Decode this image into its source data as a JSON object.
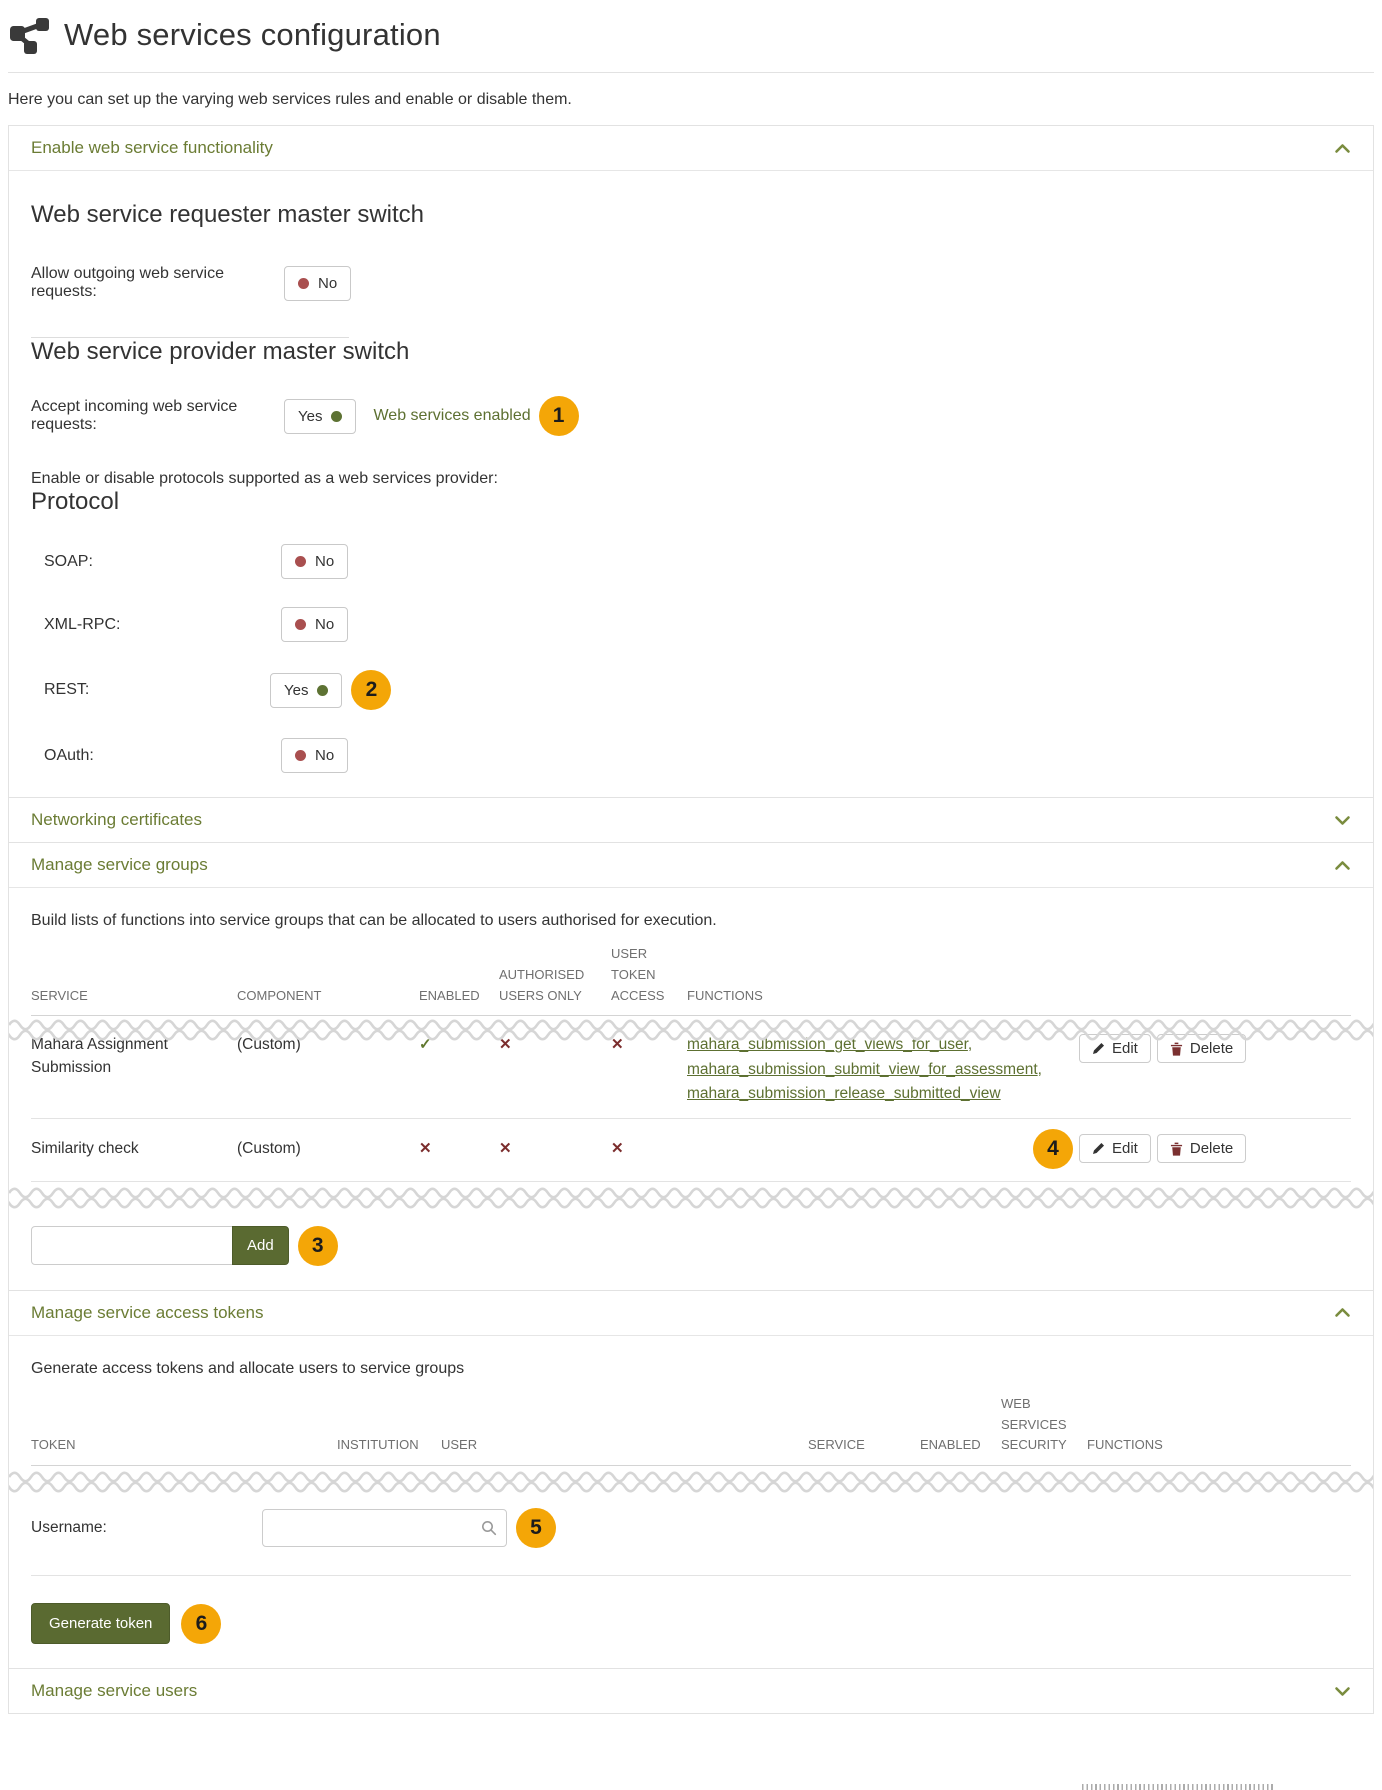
{
  "page": {
    "title": "Web services configuration",
    "intro": "Here you can set up the varying web services rules and enable or disable them."
  },
  "badges": {
    "one": "1",
    "two": "2",
    "three": "3",
    "four": "4",
    "five": "5",
    "six": "6"
  },
  "panels": {
    "enable": {
      "title": "Enable web service functionality",
      "requester_heading": "Web service requester master switch",
      "outgoing_label": "Allow outgoing web service requests:",
      "outgoing_value": "No",
      "provider_heading": "Web service provider master switch",
      "incoming_label": "Accept incoming web service requests:",
      "incoming_value": "Yes",
      "enabled_link": "Web services enabled",
      "protocols_intro": "Enable or disable protocols supported as a web services provider:",
      "protocol_heading": "Protocol",
      "protocols": [
        {
          "label": "SOAP:",
          "value": "No",
          "state": "no"
        },
        {
          "label": "XML-RPC:",
          "value": "No",
          "state": "no"
        },
        {
          "label": "REST:",
          "value": "Yes",
          "state": "yes"
        },
        {
          "label": "OAuth:",
          "value": "No",
          "state": "no"
        }
      ]
    },
    "certificates": {
      "title": "Networking certificates"
    },
    "groups": {
      "title": "Manage service groups",
      "description": "Build lists of functions into service groups that can be allocated to users authorised for execution.",
      "columns": {
        "service": "SERVICE",
        "component": "COMPONENT",
        "enabled": "ENABLED",
        "authorised": "AUTHORISED USERS ONLY",
        "token": "USER TOKEN ACCESS",
        "functions": "FUNCTIONS"
      },
      "rows": [
        {
          "service": "Mahara Assignment Submission",
          "component": "(Custom)",
          "enabled": "yes",
          "authorised": "no",
          "token_access": "no",
          "functions": [
            "mahara_submission_get_views_for_user",
            "mahara_submission_submit_view_for_assessment",
            "mahara_submission_release_submitted_view"
          ],
          "edit_label": "Edit",
          "delete_label": "Delete"
        },
        {
          "service": "Similarity check",
          "component": "(Custom)",
          "enabled": "no",
          "authorised": "no",
          "token_access": "no",
          "functions": [],
          "edit_label": "Edit",
          "delete_label": "Delete"
        }
      ],
      "add_value": "",
      "add_button": "Add"
    },
    "tokens": {
      "title": "Manage service access tokens",
      "description": "Generate access tokens and allocate users to service groups",
      "columns": {
        "token": "TOKEN",
        "institution": "INSTITUTION",
        "user": "USER",
        "service": "SERVICE",
        "enabled": "ENABLED",
        "security": "WEB SERVICES SECURITY",
        "functions": "FUNCTIONS"
      },
      "username_label": "Username:",
      "username_value": "",
      "generate_button": "Generate token"
    },
    "users": {
      "title": "Manage service users"
    }
  },
  "colors": {
    "accent_green": "#6b7c34",
    "link_green": "#5d7031",
    "button_green": "#5a6a31",
    "badge_orange": "#f4a607",
    "toggle_on_dot": "#5d7233",
    "toggle_off_dot": "#a94f4f",
    "check_mark": "#61782f",
    "cross_mark": "#7b2d2d"
  }
}
